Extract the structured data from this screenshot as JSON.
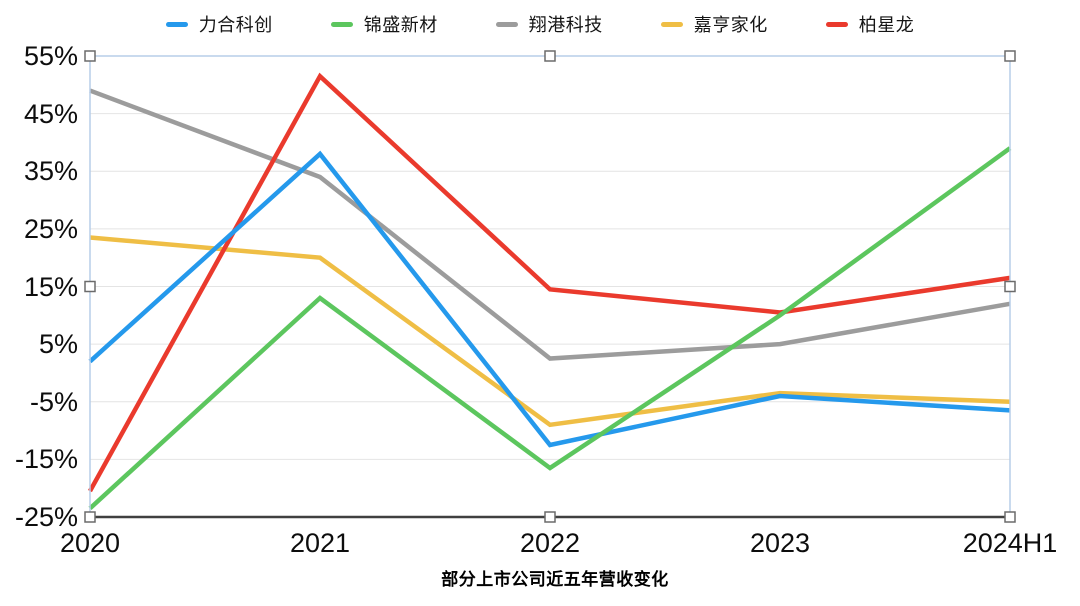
{
  "chart_data": {
    "type": "line",
    "title": "部分上市公司近五年营收变化",
    "categories": [
      "2020",
      "2021",
      "2022",
      "2023",
      "2024H1"
    ],
    "y_ticks": [
      "55%",
      "45%",
      "35%",
      "25%",
      "15%",
      "5%",
      "-5%",
      "-15%",
      "-25%"
    ],
    "ylim": [
      -25,
      55
    ],
    "ylabel": "",
    "xlabel": "",
    "grid": true,
    "legend_position": "top",
    "grid_color": "#e4e4e4",
    "axis_color": "#404040",
    "series": [
      {
        "name": "力合科创",
        "color": "#2599EC",
        "values": [
          2,
          38,
          -12.5,
          -4,
          -6.5
        ]
      },
      {
        "name": "锦盛新材",
        "color": "#5CC65E",
        "values": [
          -23.5,
          13,
          -16.5,
          10,
          39
        ]
      },
      {
        "name": "翔港科技",
        "color": "#9C9C9C",
        "values": [
          49,
          34,
          2.5,
          5,
          12
        ]
      },
      {
        "name": "嘉亨家化",
        "color": "#EFBE45",
        "values": [
          23.5,
          20,
          -9,
          -3.5,
          -5
        ]
      },
      {
        "name": "柏星龙",
        "color": "#EA3A2D",
        "values": [
          -20.5,
          51.5,
          14.5,
          10.5,
          16.5
        ]
      }
    ]
  },
  "selection": {
    "border_color": "#b7cde8",
    "handle_fill": "#ffffff",
    "handle_stroke": "#6b6b6b"
  }
}
